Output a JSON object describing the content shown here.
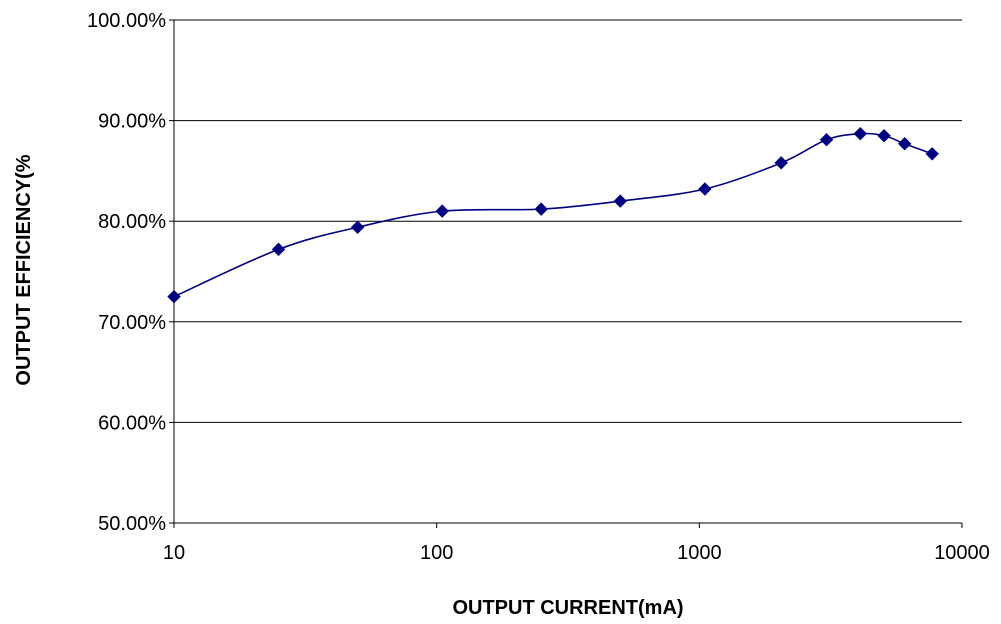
{
  "chart_data": {
    "type": "line",
    "title": "",
    "xlabel": "OUTPUT CURRENT(mA)",
    "ylabel": "OUTPUT EFFICIENCY(%",
    "x_scale": "log",
    "xlim": [
      10,
      10000
    ],
    "ylim": [
      50,
      100
    ],
    "x_ticks": [
      "10",
      "100",
      "1000",
      "10000"
    ],
    "y_ticks": [
      "50.00%",
      "60.00%",
      "70.00%",
      "80.00%",
      "90.00%",
      "100.00%"
    ],
    "grid": "horizontal",
    "legend": "none",
    "series": [
      {
        "color": "#000080",
        "marker": "diamond",
        "smooth": true,
        "x": [
          10,
          25,
          50,
          105,
          250,
          500,
          1050,
          2050,
          3050,
          4100,
          5050,
          6050,
          7700
        ],
        "y": [
          72.5,
          77.2,
          79.4,
          81.0,
          81.2,
          82.0,
          83.2,
          85.8,
          88.1,
          88.7,
          88.5,
          87.7,
          86.7
        ]
      }
    ]
  }
}
